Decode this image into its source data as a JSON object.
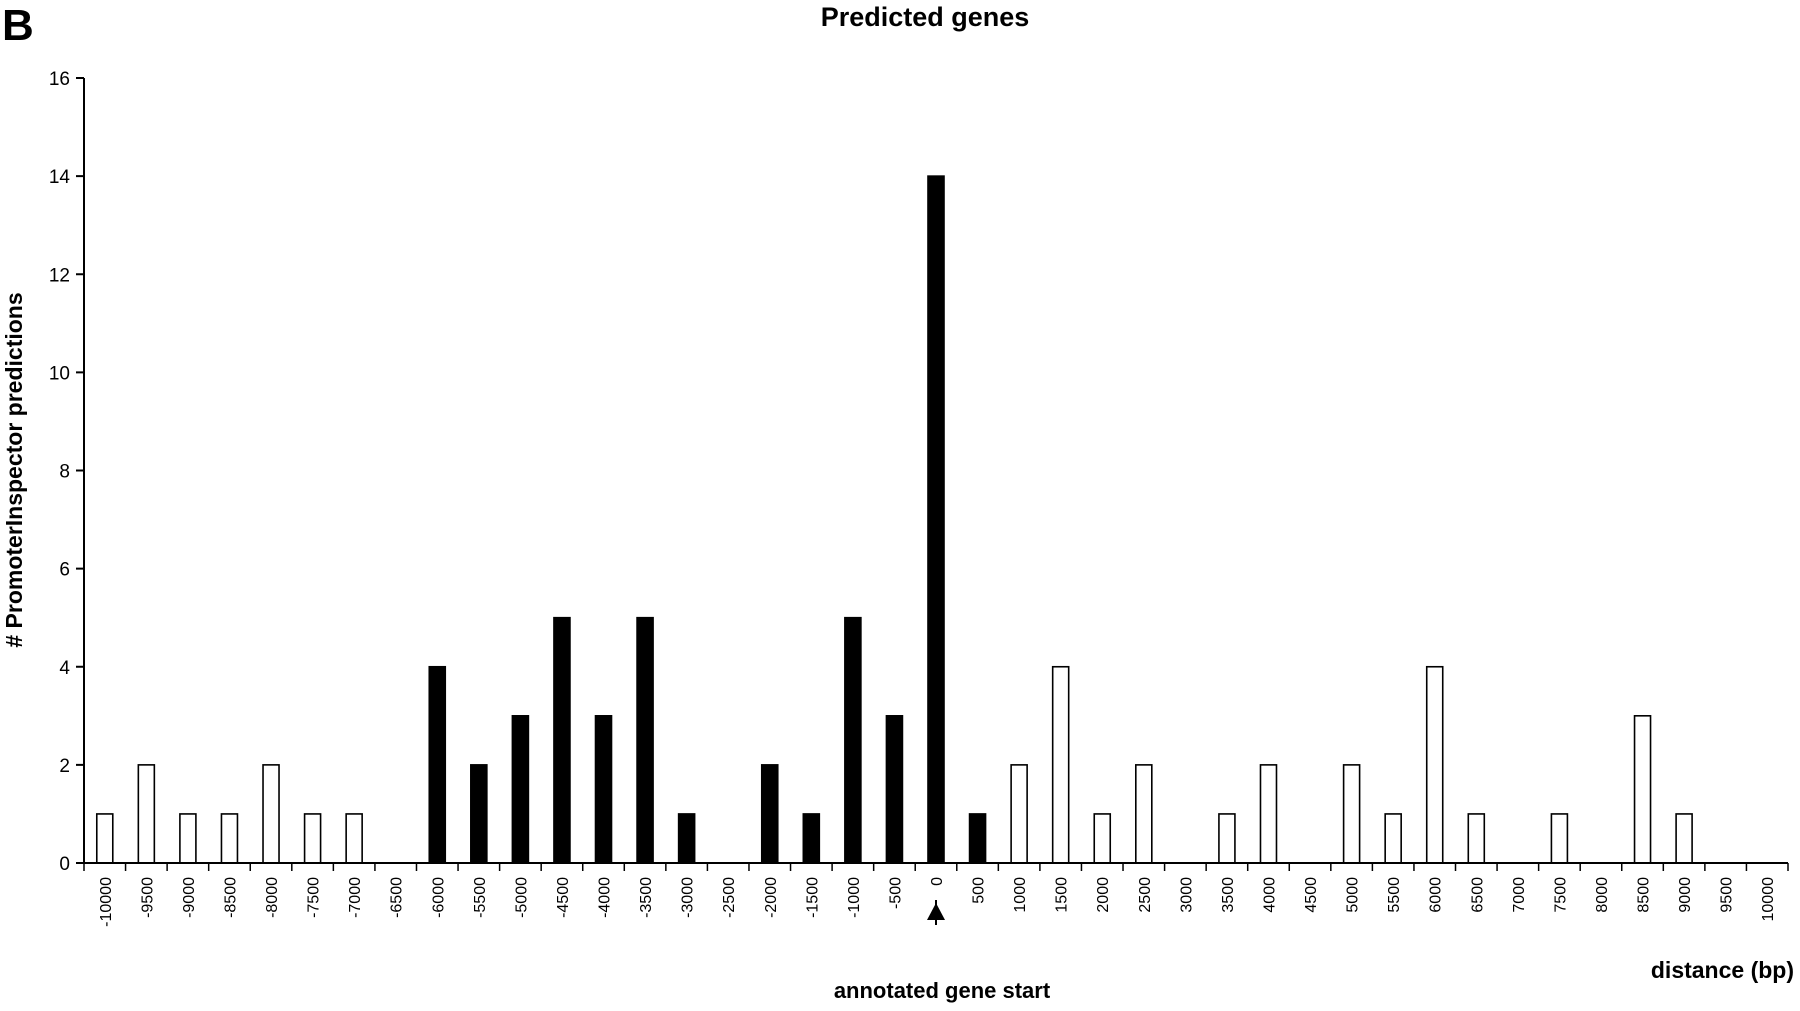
{
  "panel_label": "B",
  "chart_data": {
    "type": "bar",
    "title": "Predicted genes",
    "xlabel": "distance (bp)",
    "ylabel": "# PromoterInspector predictions",
    "ylim": [
      0,
      16
    ],
    "yticks": [
      0,
      2,
      4,
      6,
      8,
      10,
      12,
      14,
      16
    ],
    "categories": [
      "-10000",
      "-9500",
      "-9000",
      "-8500",
      "-8000",
      "-7500",
      "-7000",
      "-6500",
      "-6000",
      "-5500",
      "-5000",
      "-4500",
      "-4000",
      "-3500",
      "-3000",
      "-2500",
      "-2000",
      "-1500",
      "-1000",
      "-500",
      "0",
      "500",
      "1000",
      "1500",
      "2000",
      "2500",
      "3000",
      "3500",
      "4000",
      "4500",
      "5000",
      "5500",
      "6000",
      "6500",
      "7000",
      "7500",
      "8000",
      "8500",
      "9000",
      "9500",
      "10000"
    ],
    "values": [
      1,
      2,
      1,
      1,
      2,
      1,
      1,
      0,
      4,
      2,
      3,
      5,
      3,
      5,
      1,
      0,
      2,
      1,
      5,
      3,
      14,
      1,
      2,
      4,
      1,
      2,
      0,
      1,
      2,
      0,
      2,
      1,
      4,
      1,
      0,
      1,
      0,
      3,
      1,
      0,
      0
    ],
    "filled": [
      false,
      false,
      false,
      false,
      false,
      false,
      false,
      false,
      true,
      true,
      true,
      true,
      true,
      true,
      true,
      true,
      true,
      true,
      true,
      true,
      true,
      true,
      false,
      false,
      false,
      false,
      false,
      false,
      false,
      false,
      false,
      false,
      false,
      false,
      false,
      false,
      false,
      false,
      false,
      false,
      false
    ],
    "fill_color": "#000000",
    "open_fill_color": "#ffffff",
    "grid": false,
    "annotation": {
      "text": "annotated gene start",
      "at_category": "0"
    }
  }
}
